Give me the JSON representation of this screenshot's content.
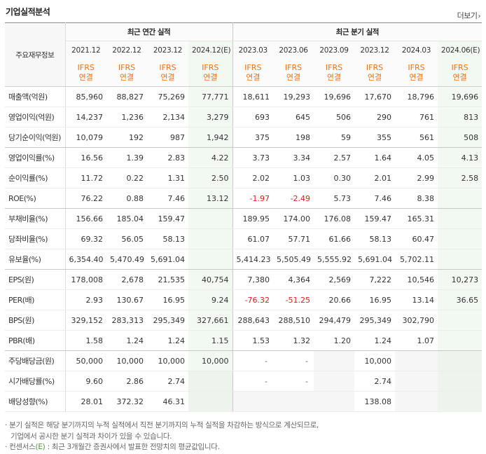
{
  "section_title": "기업실적분석",
  "more_label": "더보기",
  "row_header_label": "주요재무정보",
  "groups": {
    "annual": "최근 연간 실적",
    "quarterly": "최근 분기 실적"
  },
  "periods": [
    "2021.12",
    "2022.12",
    "2023.12",
    "2024.12(E)",
    "2023.03",
    "2023.06",
    "2023.09",
    "2023.12",
    "2024.03",
    "2024.06(E)"
  ],
  "ifrs": {
    "line1": "IFRS",
    "line2": "연결"
  },
  "rows": [
    {
      "label": "매출액(억원)",
      "values": [
        "85,960",
        "88,827",
        "75,269",
        "77,771",
        "18,611",
        "19,293",
        "19,696",
        "17,670",
        "18,796",
        "19,696"
      ]
    },
    {
      "label": "영업이익(억원)",
      "values": [
        "14,237",
        "1,236",
        "2,134",
        "3,279",
        "693",
        "645",
        "506",
        "290",
        "761",
        "813"
      ]
    },
    {
      "label": "당기순이익(억원)",
      "values": [
        "10,079",
        "192",
        "987",
        "1,942",
        "375",
        "198",
        "59",
        "355",
        "561",
        "508"
      ]
    },
    {
      "label": "영업이익률(%)",
      "values": [
        "16.56",
        "1.39",
        "2.83",
        "4.22",
        "3.73",
        "3.34",
        "2.57",
        "1.64",
        "4.05",
        "4.13"
      ]
    },
    {
      "label": "순이익률(%)",
      "values": [
        "11.72",
        "0.22",
        "1.31",
        "2.50",
        "2.02",
        "1.03",
        "0.30",
        "2.01",
        "2.99",
        "2.58"
      ]
    },
    {
      "label": "ROE(%)",
      "values": [
        "76.22",
        "0.88",
        "7.46",
        "13.12",
        "-1.97",
        "-2.49",
        "5.73",
        "7.46",
        "8.38",
        ""
      ]
    },
    {
      "label": "부채비율(%)",
      "values": [
        "156.66",
        "185.04",
        "159.47",
        "",
        "189.95",
        "174.00",
        "176.08",
        "159.47",
        "165.31",
        ""
      ]
    },
    {
      "label": "당좌비율(%)",
      "values": [
        "69.32",
        "56.05",
        "58.13",
        "",
        "61.07",
        "57.71",
        "61.66",
        "58.13",
        "60.47",
        ""
      ]
    },
    {
      "label": "유보율(%)",
      "values": [
        "6,354.40",
        "5,470.49",
        "5,691.04",
        "",
        "5,414.23",
        "5,505.49",
        "5,555.92",
        "5,691.04",
        "5,702.11",
        ""
      ]
    },
    {
      "label": "EPS(원)",
      "values": [
        "178,008",
        "2,678",
        "21,535",
        "40,754",
        "7,380",
        "4,364",
        "2,569",
        "7,222",
        "10,546",
        "10,273"
      ]
    },
    {
      "label": "PER(배)",
      "values": [
        "2.93",
        "130.67",
        "16.95",
        "9.24",
        "-76.32",
        "-51.25",
        "20.66",
        "16.95",
        "13.14",
        "36.65"
      ]
    },
    {
      "label": "BPS(원)",
      "values": [
        "329,152",
        "283,313",
        "295,349",
        "327,661",
        "288,643",
        "288,510",
        "294,479",
        "295,349",
        "302,790",
        ""
      ]
    },
    {
      "label": "PBR(배)",
      "values": [
        "1.58",
        "1.24",
        "1.24",
        "1.15",
        "1.53",
        "1.32",
        "1.20",
        "1.24",
        "1.07",
        ""
      ]
    },
    {
      "label": "주당배당금(원)",
      "values": [
        "50,000",
        "10,000",
        "10,000",
        "10,000",
        "-",
        "-",
        "",
        "10,000",
        "",
        ""
      ]
    },
    {
      "label": "시가배당률(%)",
      "values": [
        "9.60",
        "2.86",
        "2.74",
        "",
        "-",
        "-",
        "",
        "2.74",
        "",
        ""
      ]
    },
    {
      "label": "배당성향(%)",
      "values": [
        "28.01",
        "372.32",
        "46.31",
        "",
        "",
        "",
        "",
        "138.08",
        "",
        ""
      ]
    }
  ],
  "notes": {
    "line1": "분기 실적은 해당 분기까지의 누적 실적에서 직전 분기까지의 누적 실적을 차감하는 방식으로 계산되므로,",
    "line2": "기업에서 공시한 분기 실적과 차이가 있을 수 있습니다.",
    "line3_prefix": "컨센서스",
    "line3_mark": "(E)",
    "line3_rest": ": 최근 3개월간 증권사에서 발표한 전망치의 평균값입니다."
  },
  "colors": {
    "ifrs": "#e8731a",
    "negative": "#e21b1b",
    "estimate_bg": "#f2f8f2",
    "consensus_mark": "#4a9a3a"
  }
}
